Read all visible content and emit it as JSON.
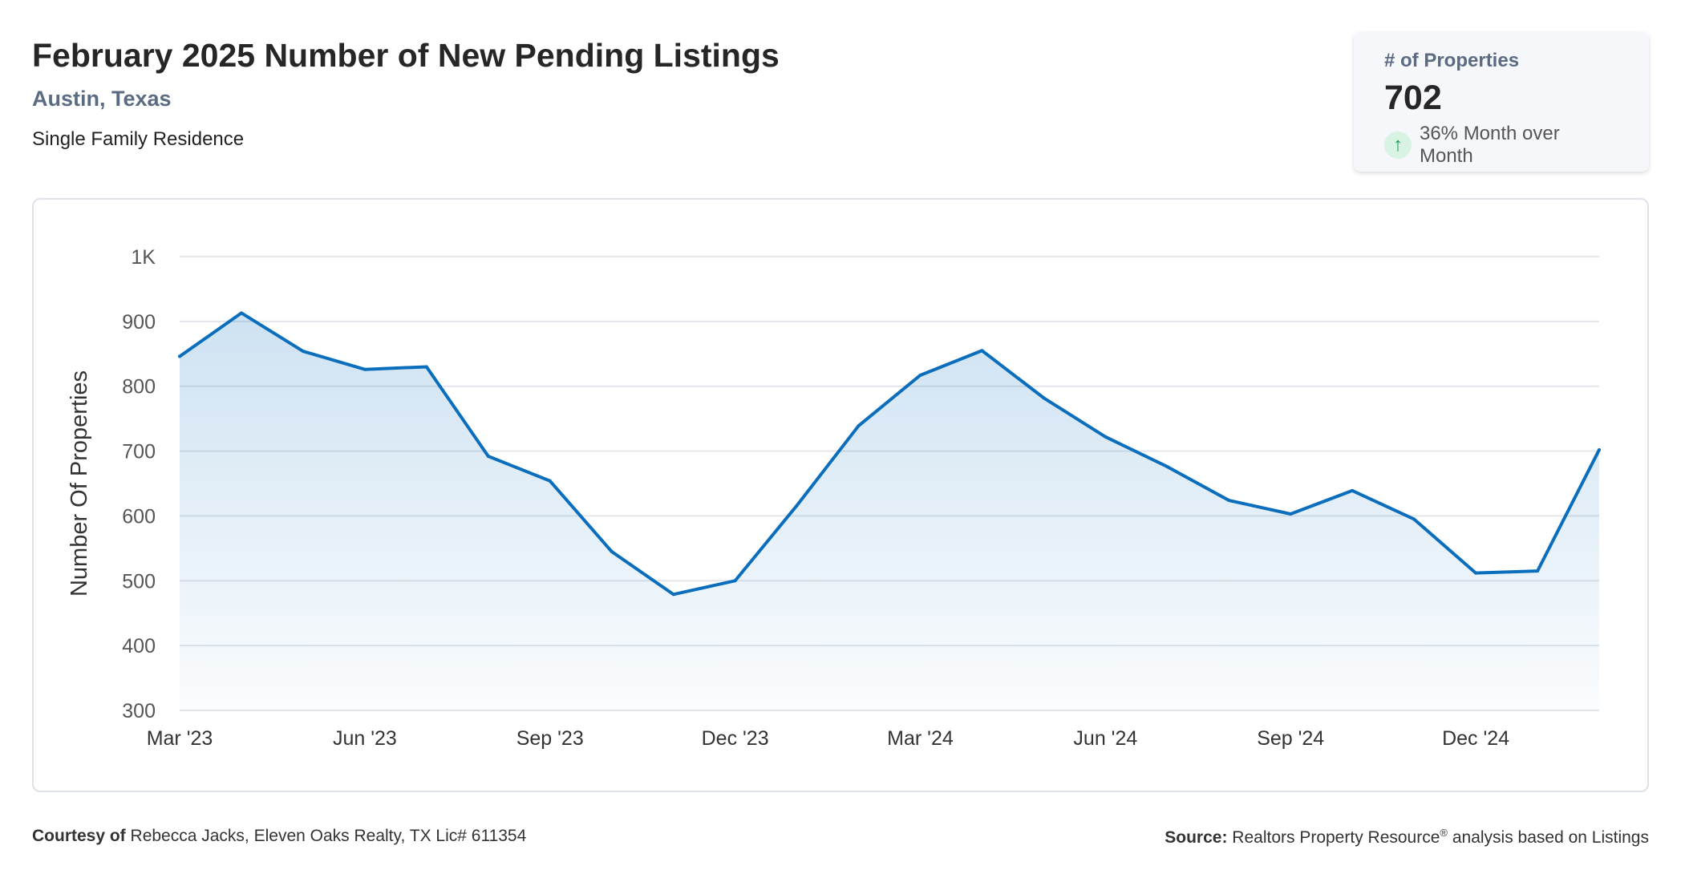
{
  "header": {
    "title": "February 2025 Number of New Pending Listings",
    "location": "Austin, Texas",
    "property_type": "Single Family Residence"
  },
  "kpi": {
    "label": "# of Properties",
    "value": "702",
    "change": "36% Month over Month",
    "icon": "arrow-up-icon",
    "accent": "#1a9a4c"
  },
  "footer": {
    "courtesy_label": "Courtesy of",
    "courtesy_text": "Rebecca Jacks, Eleven Oaks Realty, TX Lic# 611354",
    "source_label": "Source:",
    "source_text": "Realtors Property Resource",
    "source_sup": "®",
    "source_tail": " analysis based on Listings"
  },
  "chart_data": {
    "type": "area",
    "title": "February 2025 Number of New Pending Listings",
    "ylabel": "Number Of Properties",
    "xlabel": "",
    "ylim": [
      300,
      1000
    ],
    "yticks": [
      300,
      400,
      500,
      600,
      700,
      800,
      900,
      1000
    ],
    "ytick_labels": [
      "300",
      "400",
      "500",
      "600",
      "700",
      "800",
      "900",
      "1K"
    ],
    "x": [
      "Mar '23",
      "Apr '23",
      "May '23",
      "Jun '23",
      "Jul '23",
      "Aug '23",
      "Sep '23",
      "Oct '23",
      "Nov '23",
      "Dec '23",
      "Jan '24",
      "Feb '24",
      "Mar '24",
      "Apr '24",
      "May '24",
      "Jun '24",
      "Jul '24",
      "Aug '24",
      "Sep '24",
      "Oct '24",
      "Nov '24",
      "Dec '24",
      "Jan '25",
      "Feb '25"
    ],
    "xtick_labels": {
      "0": "Mar '23",
      "3": "Jun '23",
      "6": "Sep '23",
      "9": "Dec '23",
      "12": "Mar '24",
      "15": "Jun '24",
      "18": "Sep '24",
      "21": "Dec '24"
    },
    "series": [
      {
        "name": "Number Of Properties",
        "color": "#0a6ebd",
        "values": [
          846,
          913,
          854,
          826,
          830,
          692,
          654,
          545,
          479,
          500,
          616,
          739,
          817,
          855,
          782,
          722,
          676,
          624,
          603,
          639,
          595,
          512,
          515,
          702
        ]
      }
    ],
    "grid": true
  }
}
